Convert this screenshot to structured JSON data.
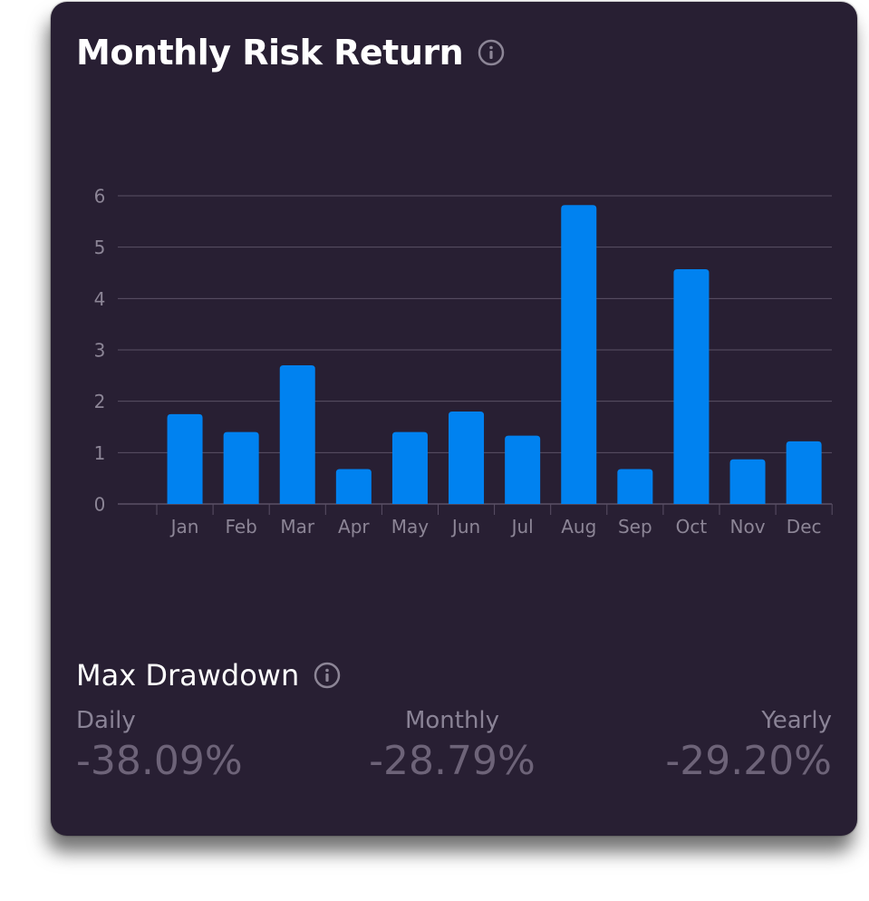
{
  "card": {
    "title": "Monthly Risk Return",
    "drawdown_title": "Max Drawdown"
  },
  "drawdown": {
    "daily_label": "Daily",
    "daily_value": "-38.09%",
    "monthly_label": "Monthly",
    "monthly_value": "-28.79%",
    "yearly_label": "Yearly",
    "yearly_value": "-29.20%"
  },
  "colors": {
    "background": "#281f33",
    "bar": "#0082f0",
    "grid": "#5a5066",
    "text_muted": "#8c8596"
  },
  "chart_data": {
    "type": "bar",
    "categories": [
      "Jan",
      "Feb",
      "Mar",
      "Apr",
      "May",
      "Jun",
      "Jul",
      "Aug",
      "Sep",
      "Oct",
      "Nov",
      "Dec"
    ],
    "values": [
      1.75,
      1.4,
      2.7,
      0.68,
      1.4,
      1.8,
      1.33,
      5.82,
      0.68,
      4.57,
      0.87,
      1.22
    ],
    "yticks": [
      0,
      1,
      2,
      3,
      4,
      5,
      6
    ],
    "ylim": [
      0,
      6
    ],
    "grid": true,
    "title": "",
    "xlabel": "",
    "ylabel": ""
  }
}
